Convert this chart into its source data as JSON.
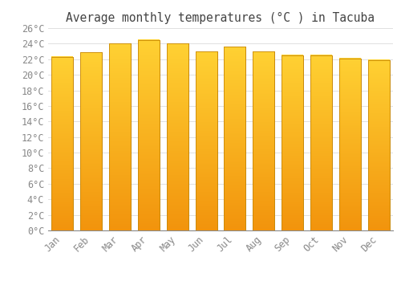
{
  "title": "Average monthly temperatures (°C ) in Tacuba",
  "months": [
    "Jan",
    "Feb",
    "Mar",
    "Apr",
    "May",
    "Jun",
    "Jul",
    "Aug",
    "Sep",
    "Oct",
    "Nov",
    "Dec"
  ],
  "values": [
    22.3,
    22.9,
    24.0,
    24.5,
    24.0,
    23.0,
    23.6,
    23.0,
    22.5,
    22.5,
    22.1,
    21.9
  ],
  "bar_color": "#FFC125",
  "bar_edge_color": "#C8890A",
  "background_color": "#FFFFFF",
  "grid_color": "#E0E0E0",
  "ylim": [
    0,
    26
  ],
  "ytick_step": 2,
  "title_fontsize": 10.5,
  "tick_fontsize": 8.5,
  "font_family": "monospace",
  "tick_color": "#888888",
  "title_color": "#444444"
}
